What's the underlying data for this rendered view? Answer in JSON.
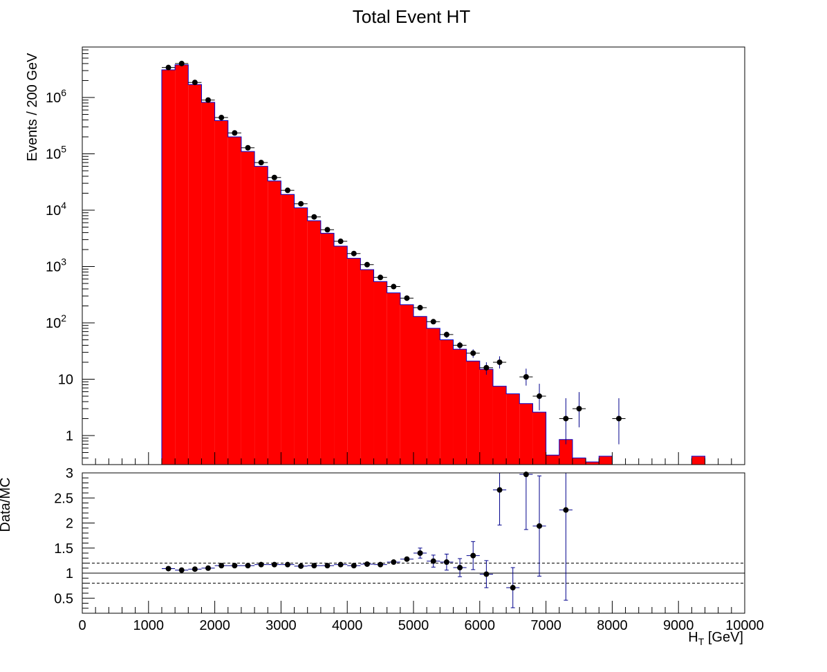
{
  "chart_data": [
    {
      "type": "bar",
      "panel": "main",
      "title": "Total Event HT",
      "ylabel": "Events / 200 GeV",
      "yscale": "log",
      "ylim": [
        0.3,
        7000000
      ],
      "xlim": [
        0,
        10000
      ],
      "y_tick_labels": [
        {
          "value": 1,
          "label": "1"
        },
        {
          "value": 10,
          "label": "10"
        },
        {
          "value": 100,
          "label": "10",
          "exp": "2"
        },
        {
          "value": 1000,
          "label": "10",
          "exp": "3"
        },
        {
          "value": 10000,
          "label": "10",
          "exp": "4"
        },
        {
          "value": 100000,
          "label": "10",
          "exp": "5"
        },
        {
          "value": 1000000,
          "label": "10",
          "exp": "6"
        }
      ],
      "histogram": {
        "bin_width": 200,
        "bin_lows": [
          1200,
          1400,
          1600,
          1800,
          2000,
          2200,
          2400,
          2600,
          2800,
          3000,
          3200,
          3400,
          3600,
          3800,
          4000,
          4200,
          4400,
          4600,
          4800,
          5000,
          5200,
          5400,
          5600,
          5800,
          6000,
          6200,
          6400,
          6600,
          6800,
          7000,
          7200,
          7400,
          7600,
          7800,
          9200
        ],
        "values": [
          3100000,
          3800000,
          1700000,
          820000,
          390000,
          200000,
          110000,
          60000,
          33000,
          19000,
          11000,
          6500,
          3900,
          2300,
          1400,
          880,
          540,
          340,
          210,
          130,
          80,
          50,
          34,
          21,
          15,
          7.5,
          5.5,
          3.7,
          2.6,
          0.45,
          0.85,
          0.4,
          0.34,
          0.43,
          0.43
        ],
        "fill_color": "#ff0000",
        "line_color": "#0000cc"
      },
      "data_points": {
        "x": [
          1300,
          1500,
          1700,
          1900,
          2100,
          2300,
          2500,
          2700,
          2900,
          3100,
          3300,
          3500,
          3700,
          3900,
          4100,
          4300,
          4500,
          4700,
          4900,
          5100,
          5300,
          5500,
          5700,
          5900,
          6100,
          6300,
          6700,
          6900,
          7300,
          7500,
          8100
        ],
        "y": [
          3400000,
          4000000,
          1850000,
          900000,
          440000,
          235000,
          128000,
          70000,
          38000,
          22500,
          13000,
          7600,
          4500,
          2800,
          1700,
          1080,
          640,
          440,
          275,
          186,
          105,
          62,
          40,
          29,
          16,
          20,
          11,
          5,
          2,
          3,
          2
        ],
        "x_err": 100,
        "y_err_low": [
          0,
          0,
          0,
          0,
          0,
          0,
          0,
          0,
          0,
          0,
          0,
          0,
          0,
          0,
          0,
          0,
          0,
          0,
          0,
          0,
          10,
          8,
          6,
          5,
          4,
          4.5,
          3.3,
          2.2,
          1.3,
          1.6,
          1.3
        ],
        "y_err_high": [
          0,
          0,
          0,
          0,
          0,
          0,
          0,
          0,
          0,
          0,
          0,
          0,
          0,
          0,
          0,
          0,
          0,
          0,
          0,
          0,
          10,
          8,
          6,
          5,
          4,
          5.5,
          4.4,
          3.3,
          2.6,
          2.9,
          2.6
        ],
        "marker_color": "#000000",
        "error_color": "#00008b"
      }
    },
    {
      "type": "scatter",
      "panel": "ratio",
      "ylabel": "Data/MC",
      "xlabel": "H",
      "xlabel_sub": "T",
      "xlabel_unit": " [GeV]",
      "ylim": [
        0.2,
        3.0
      ],
      "xlim": [
        0,
        10000
      ],
      "x_tick_labels": [
        "0",
        "1000",
        "2000",
        "3000",
        "4000",
        "5000",
        "6000",
        "7000",
        "8000",
        "9000",
        "10000"
      ],
      "y_tick_labels": [
        "0.5",
        "1",
        "1.5",
        "2",
        "2.5",
        "3"
      ],
      "reference_line": 1.0,
      "band_lines": [
        0.8,
        1.2
      ],
      "x": [
        1300,
        1500,
        1700,
        1900,
        2100,
        2300,
        2500,
        2700,
        2900,
        3100,
        3300,
        3500,
        3700,
        3900,
        4100,
        4300,
        4500,
        4700,
        4900,
        5100,
        5300,
        5500,
        5700,
        5900,
        6100,
        6300,
        6500,
        6700,
        6900,
        7300
      ],
      "y": [
        1.09,
        1.06,
        1.08,
        1.1,
        1.15,
        1.15,
        1.15,
        1.17,
        1.17,
        1.17,
        1.14,
        1.15,
        1.15,
        1.17,
        1.15,
        1.18,
        1.17,
        1.22,
        1.28,
        1.4,
        1.24,
        1.22,
        1.11,
        1.35,
        0.98,
        2.66,
        0.71,
        2.97,
        1.94,
        2.26
      ],
      "y_err": [
        0.01,
        0.01,
        0.01,
        0.01,
        0.01,
        0.01,
        0.01,
        0.01,
        0.015,
        0.02,
        0.02,
        0.02,
        0.02,
        0.025,
        0.03,
        0.03,
        0.035,
        0.04,
        0.05,
        0.1,
        0.12,
        0.16,
        0.18,
        0.28,
        0.27,
        0.7,
        0.4,
        1.1,
        1.0,
        1.8
      ]
    }
  ]
}
